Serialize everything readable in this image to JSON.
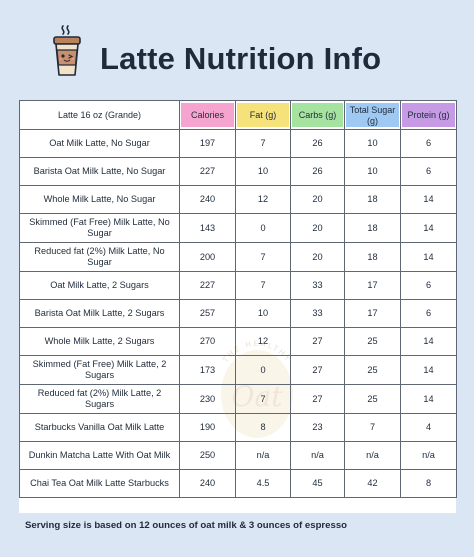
{
  "title": "Latte Nutrition Info",
  "colors": {
    "background": "#dbe6f4",
    "calories": "#f5a3cf",
    "fat": "#f6e27a",
    "carbs": "#a7e3a0",
    "total_sugar": "#9fc9f2",
    "protein": "#c79ae6"
  },
  "icons": {
    "header": "coffee-cup-icon",
    "watermark": "oat-logo-watermark"
  },
  "watermark_text": {
    "ring": "THE HEALTHY",
    "word": "Oat"
  },
  "table": {
    "headers": {
      "name": "Latte 16 oz (Grande)",
      "calories": "Calories",
      "fat": "Fat (g)",
      "carbs": "Carbs (g)",
      "total_sugar": "Total Sugar (g)",
      "protein": "Protein (g)"
    },
    "rows": [
      {
        "name": "Oat Milk Latte, No Sugar",
        "calories": "197",
        "fat": "7",
        "carbs": "26",
        "total_sugar": "10",
        "protein": "6"
      },
      {
        "name": "Barista Oat Milk Latte, No Sugar",
        "calories": "227",
        "fat": "10",
        "carbs": "26",
        "total_sugar": "10",
        "protein": "6"
      },
      {
        "name": "Whole Milk Latte, No Sugar",
        "calories": "240",
        "fat": "12",
        "carbs": "20",
        "total_sugar": "18",
        "protein": "14"
      },
      {
        "name": "Skimmed (Fat Free) Milk Latte, No Sugar",
        "calories": "143",
        "fat": "0",
        "carbs": "20",
        "total_sugar": "18",
        "protein": "14"
      },
      {
        "name": "Reduced fat (2%) Milk Latte, No Sugar",
        "calories": "200",
        "fat": "7",
        "carbs": "20",
        "total_sugar": "18",
        "protein": "14"
      },
      {
        "name": "Oat Milk Latte, 2 Sugars",
        "calories": "227",
        "fat": "7",
        "carbs": "33",
        "total_sugar": "17",
        "protein": "6"
      },
      {
        "name": "Barista Oat Milk Latte, 2 Sugars",
        "calories": "257",
        "fat": "10",
        "carbs": "33",
        "total_sugar": "17",
        "protein": "6"
      },
      {
        "name": "Whole Milk Latte, 2 Sugars",
        "calories": "270",
        "fat": "12",
        "carbs": "27",
        "total_sugar": "25",
        "protein": "14"
      },
      {
        "name": "Skimmed (Fat Free) Milk Latte, 2 Sugars",
        "calories": "173",
        "fat": "0",
        "carbs": "27",
        "total_sugar": "25",
        "protein": "14"
      },
      {
        "name": "Reduced fat (2%) Milk Latte, 2 Sugars",
        "calories": "230",
        "fat": "7",
        "carbs": "27",
        "total_sugar": "25",
        "protein": "14"
      },
      {
        "name": "Starbucks Vanilla Oat Milk Latte",
        "calories": "190",
        "fat": "8",
        "carbs": "23",
        "total_sugar": "7",
        "protein": "4"
      },
      {
        "name": "Dunkin Matcha Latte With Oat Milk",
        "calories": "250",
        "fat": "n/a",
        "carbs": "n/a",
        "total_sugar": "n/a",
        "protein": "n/a"
      },
      {
        "name": "Chai Tea Oat Milk Latte Starbucks",
        "calories": "240",
        "fat": "4.5",
        "carbs": "45",
        "total_sugar": "42",
        "protein": "8"
      }
    ]
  },
  "footer": "Serving size is based on 12 ounces of oat milk & 3 ounces of espresso"
}
